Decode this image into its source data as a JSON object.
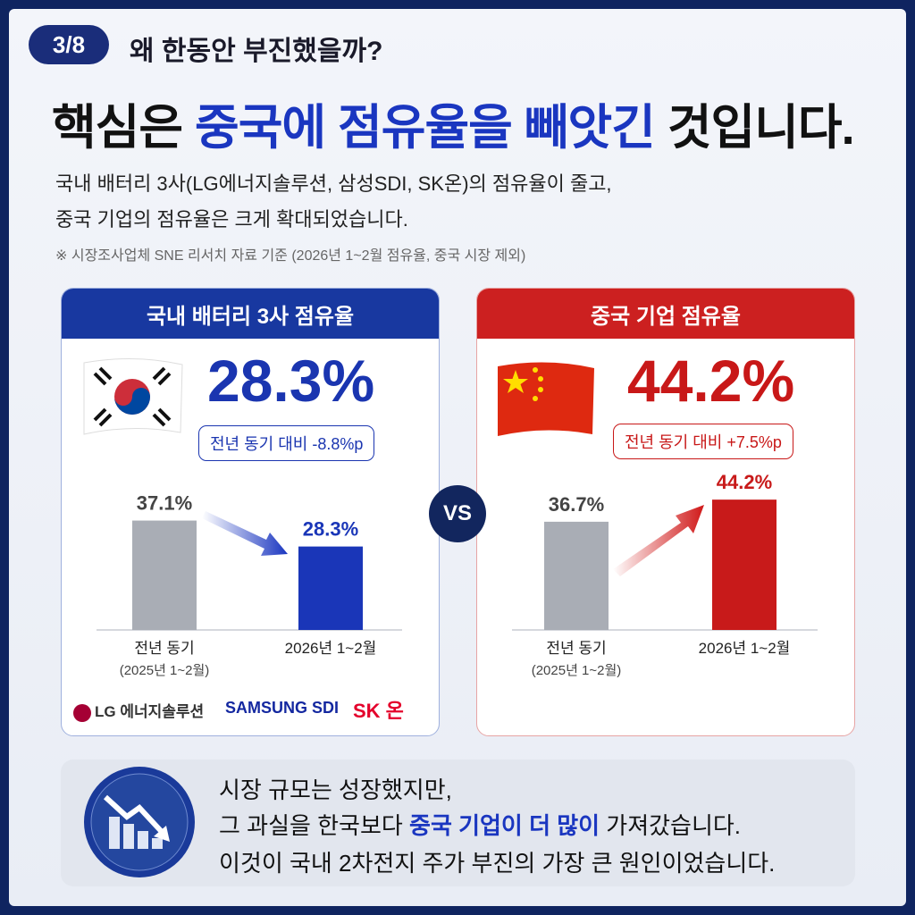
{
  "header": {
    "badge": "3/8",
    "question": "왜 한동안 부진했을까?",
    "headline": [
      "핵심은 ",
      "중국에 점유율을 빼앗긴",
      " 것입니다."
    ],
    "description": [
      "국내 배터리 3사(LG에너지솔루션, 삼성SDI, SK온)의 점유율이 줄고,",
      "중국 기업의 점유율은 크게 확대되었습니다."
    ],
    "note": "※ 시장조사업체 SNE 리서치 자료 기준 (2026년 1~2월 점유율, 중국 시장 제외)"
  },
  "cards": [
    {
      "title": "국내 배터리 3사 점유율",
      "share": "28.3%",
      "change": "전년 동기 대비 -8.8%p",
      "logos": [
        "LG 에너지솔루션",
        "SAMSUNG SDI",
        "SK 온"
      ]
    },
    {
      "title": "중국 기업 점유율",
      "share": "44.2%",
      "change": "전년 동기 대비 +7.5%p"
    }
  ],
  "vs": "VS",
  "chart_data": [
    {
      "type": "bar",
      "categories": [
        "전년 동기",
        "2026년 1~2월"
      ],
      "category_sublabels": [
        "(2025년 1~2월)",
        null
      ],
      "values": [
        37.1,
        28.3
      ],
      "value_labels": [
        "37.1%",
        "28.3%"
      ],
      "colors": [
        "#a9adb5",
        "#1a36b8"
      ]
    },
    {
      "type": "bar",
      "categories": [
        "전년 동기",
        "2026년 1~2월"
      ],
      "category_sublabels": [
        "(2025년 1~2월)",
        null
      ],
      "values": [
        36.7,
        44.2
      ],
      "value_labels": [
        "36.7%",
        "44.2%"
      ],
      "colors": [
        "#a9adb5",
        "#c81a1a"
      ]
    }
  ],
  "footer": {
    "lines": [
      [
        "시장 규모는 성장했지만,"
      ],
      [
        "그 과실을 한국보다 ",
        "중국 기업이 더 많이",
        " 가져갔습니다."
      ],
      [
        "이것이 국내 2차전지 주가 부진의 가장 큰 원인이었습니다."
      ]
    ]
  }
}
